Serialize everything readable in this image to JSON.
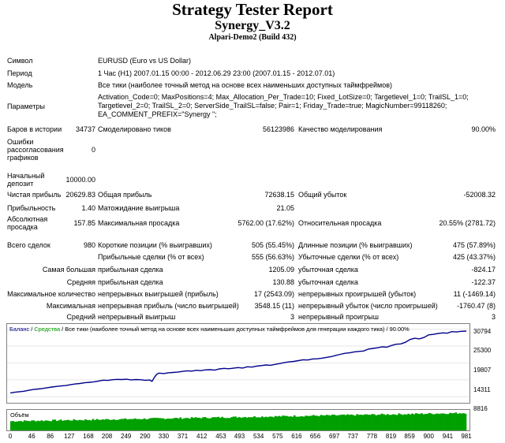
{
  "header": {
    "title": "Strategy Tester Report",
    "ea_name": "Synergy_V3.2",
    "server": "Alpari-Demo2 (Build 432)"
  },
  "info": {
    "symbol_label": "Символ",
    "symbol_value": "EURUSD (Euro vs US Dollar)",
    "period_label": "Период",
    "period_value": "1 Час (H1) 2007.01.15 00:00 - 2012.06.29 23:00 (2007.01.15 - 2012.07.01)",
    "model_label": "Модель",
    "model_value": "Все тики (наиболее точный метод на основе всех наименьших доступных таймфреймов)",
    "params_label": "Параметры",
    "params_lines": [
      "Activation_Code=0; MaxPositions=4; Max_Allocation_Per_Trade=10; Fixed_LotSize=0; Targetlevel_1=0; TrailSL_1=0;",
      "Targetlevel_2=0; TrailSL_2=0; ServerSide_TrailSL=false; Pair=1; Friday_Trade=true; MagicNumber=99118260;",
      "EA_COMMENT_PREFIX=\"Synergy \";"
    ]
  },
  "stats": {
    "bars_label": "Баров в истории",
    "bars_value": "34737",
    "ticks_label": "Смоделировано тиков",
    "ticks_value": "56123986",
    "quality_label": "Качество моделирования",
    "quality_value": "90.00%",
    "errors_label_lines": [
      "Ошибки",
      "рассогласования",
      "графиков"
    ],
    "errors_value": "0",
    "deposit_label_lines": [
      "Начальный",
      "депозит"
    ],
    "deposit_value": "10000.00",
    "net_label": "Чистая прибыль",
    "net_value": "20629.83",
    "gross_profit_label": "Общая прибыль",
    "gross_profit_value": "72638.15",
    "gross_loss_label": "Общий убыток",
    "gross_loss_value": "-52008.32",
    "pf_label": "Прибыльность",
    "pf_value": "1.40",
    "payoff_label": "Матожидание выигрыша",
    "payoff_value": "21.05",
    "abs_dd_label_lines": [
      "Абсолютная",
      "просадка"
    ],
    "abs_dd_value": "157.85",
    "max_dd_label": "Максимальная просадка",
    "max_dd_value": "5762.00 (17.62%)",
    "rel_dd_label": "Относительная просадка",
    "rel_dd_value": "20.55% (2781.72)",
    "trades_label": "Всего сделок",
    "trades_value": "980",
    "short_label": "Короткие позиции (% выигравших)",
    "short_value": "505 (55.45%)",
    "long_label": "Длинные позиции (% выигравших)",
    "long_value": "475 (57.89%)",
    "profit_trades_label": "Прибыльные сделки (% от всех)",
    "profit_trades_value": "555 (56.63%)",
    "loss_trades_label": "Убыточные сделки (% от всех)",
    "loss_trades_value": "425 (43.37%)",
    "largest_prefix": "Самая большая",
    "largest_profit_label": "прибыльная сделка",
    "largest_profit_value": "1205.09",
    "largest_loss_label": "убыточная сделка",
    "largest_loss_value": "-824.17",
    "avg_prefix": "Средняя",
    "avg_profit_label": "прибыльная сделка",
    "avg_profit_value": "130.88",
    "avg_loss_label": "убыточная сделка",
    "avg_loss_value": "-122.37",
    "max_cons_prefix": "Максимальное количество",
    "max_cons_win_label": "непрерывных выигрышей (прибыль)",
    "max_cons_win_value": "17 (2543.09)",
    "max_cons_loss_label": "непрерывных проигрышей (убыток)",
    "max_cons_loss_value": "11 (-1469.14)",
    "max_prefix": "Максимальная",
    "max_cons_profit_label": "непрерывная прибыль (число выигрышей)",
    "max_cons_profit_value": "3548.15 (11)",
    "max_cons_lossamt_label": "непрерывный убыток (число проигрышей)",
    "max_cons_lossamt_value": "-1760.47 (8)",
    "avg_cons_prefix": "Средний",
    "avg_cons_win_label": "непрерывный выигрыш",
    "avg_cons_win_value": "3",
    "avg_cons_loss_label": "непрерывный проигрыш",
    "avg_cons_loss_value": "3"
  },
  "chart_legend": {
    "balance": "Баланс",
    "sep1": " / ",
    "equity": "Средства",
    "sep2": " / ",
    "desc": "Все тики (наиболее точный метод на основе всех наименьших доступных таймфреймов для генерации каждого тика) / 90.00%"
  },
  "volume_label": "Объём",
  "colors": {
    "balance": "#00008B",
    "equity": "#00A000",
    "volume": "#00A000"
  },
  "chart_data": {
    "type": "line",
    "ylim": [
      6816,
      32500
    ],
    "y_ticks": [
      "30794",
      "25300",
      "19807",
      "14311",
      "8816"
    ],
    "y_tick_values": [
      30794,
      25300,
      19807,
      14311,
      8816
    ],
    "x_ticks": [
      "0",
      "46",
      "86",
      "127",
      "168",
      "208",
      "249",
      "290",
      "330",
      "371",
      "412",
      "453",
      "493",
      "534",
      "575",
      "616",
      "656",
      "697",
      "737",
      "778",
      "819",
      "859",
      "900",
      "941",
      "981"
    ],
    "xlim": [
      0,
      981
    ],
    "series": [
      {
        "name": "Баланс",
        "x": [
          0,
          10,
          20,
          30,
          40,
          50,
          60,
          70,
          80,
          90,
          100,
          110,
          120,
          130,
          140,
          150,
          160,
          170,
          180,
          190,
          200,
          210,
          220,
          230,
          240,
          250,
          260,
          270,
          280,
          290,
          300,
          305,
          310,
          315,
          320,
          330,
          340,
          350,
          360,
          370,
          380,
          390,
          400,
          410,
          420,
          430,
          440,
          450,
          460,
          470,
          480,
          490,
          500,
          510,
          520,
          530,
          540,
          550,
          560,
          570,
          580,
          590,
          600,
          610,
          620,
          630,
          640,
          650,
          660,
          670,
          680,
          690,
          700,
          710,
          720,
          730,
          740,
          750,
          760,
          770,
          780,
          790,
          800,
          810,
          820,
          830,
          840,
          850,
          855,
          860,
          870,
          880,
          890,
          900,
          910,
          920,
          930,
          940,
          950,
          960,
          970,
          981
        ],
        "y": [
          10000,
          10250,
          10450,
          10600,
          10900,
          11150,
          11300,
          11500,
          11750,
          11950,
          12150,
          12300,
          12450,
          12750,
          12950,
          13100,
          13350,
          13500,
          13650,
          13900,
          14200,
          14100,
          14350,
          14450,
          14400,
          14500,
          14300,
          14400,
          14350,
          14150,
          14250,
          13800,
          15100,
          16100,
          16500,
          16350,
          16600,
          16700,
          16800,
          17050,
          17250,
          17150,
          17400,
          17300,
          17550,
          17600,
          17450,
          17850,
          18050,
          17900,
          18100,
          18300,
          18150,
          18550,
          18450,
          18750,
          18950,
          19150,
          19050,
          19350,
          19600,
          19950,
          20150,
          20300,
          20550,
          20850,
          20750,
          21100,
          21150,
          21350,
          21600,
          21850,
          22250,
          22600,
          22950,
          23100,
          23400,
          23550,
          23700,
          24300,
          24550,
          24750,
          25050,
          24950,
          25500,
          25900,
          26000,
          26550,
          27000,
          27450,
          27850,
          27650,
          28100,
          28950,
          29100,
          29400,
          29600,
          29500,
          30000,
          29900,
          30100,
          30200
        ]
      }
    ],
    "volume_min_fraction": 0.45,
    "volume_max_fraction": 0.85
  }
}
